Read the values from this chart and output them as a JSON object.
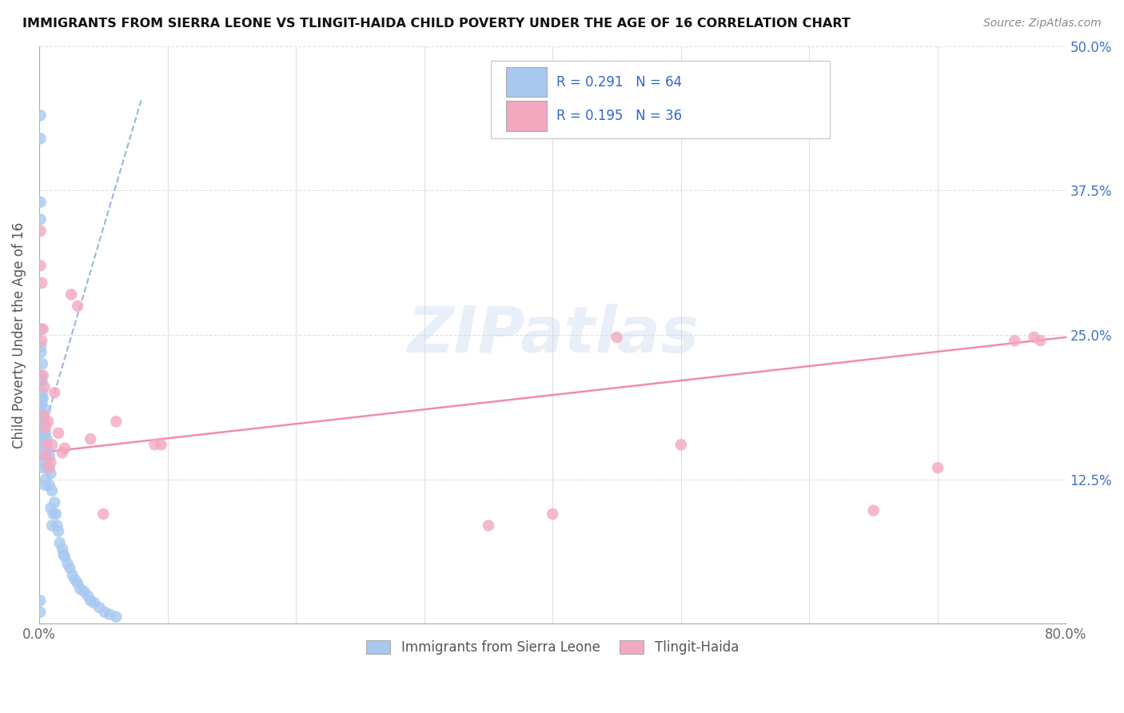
{
  "title": "IMMIGRANTS FROM SIERRA LEONE VS TLINGIT-HAIDA CHILD POVERTY UNDER THE AGE OF 16 CORRELATION CHART",
  "source": "Source: ZipAtlas.com",
  "ylabel": "Child Poverty Under the Age of 16",
  "legend_label1": "Immigrants from Sierra Leone",
  "legend_label2": "Tlingit-Haida",
  "R1": "0.291",
  "N1": "64",
  "R2": "0.195",
  "N2": "36",
  "color1": "#a8c8f0",
  "color2": "#f4a8c0",
  "trend1_color": "#88aadd",
  "trend2_color": "#f080a0",
  "xlim": [
    0.0,
    0.8
  ],
  "ylim": [
    0.0,
    0.5
  ],
  "xticks": [
    0.0,
    0.1,
    0.2,
    0.3,
    0.4,
    0.5,
    0.6,
    0.7,
    0.8
  ],
  "xticklabels": [
    "0.0%",
    "",
    "",
    "",
    "",
    "",
    "",
    "",
    "80.0%"
  ],
  "yticks": [
    0.0,
    0.125,
    0.25,
    0.375,
    0.5
  ],
  "yticklabels_right": [
    "",
    "12.5%",
    "25.0%",
    "37.5%",
    "50.0%"
  ],
  "watermark": "ZIPatlas",
  "blue_x": [
    0.001,
    0.0012,
    0.0012,
    0.0015,
    0.0015,
    0.0015,
    0.001,
    0.001,
    0.002,
    0.002,
    0.002,
    0.0022,
    0.0022,
    0.0025,
    0.0025,
    0.003,
    0.003,
    0.003,
    0.003,
    0.003,
    0.004,
    0.004,
    0.004,
    0.0045,
    0.005,
    0.005,
    0.005,
    0.005,
    0.006,
    0.006,
    0.007,
    0.008,
    0.008,
    0.009,
    0.009,
    0.01,
    0.01,
    0.011,
    0.012,
    0.013,
    0.014,
    0.015,
    0.016,
    0.018,
    0.019,
    0.02,
    0.022,
    0.024,
    0.026,
    0.028,
    0.03,
    0.032,
    0.035,
    0.038,
    0.04,
    0.043,
    0.047,
    0.051,
    0.055,
    0.06,
    0.001,
    0.001,
    0.0008,
    0.0008
  ],
  "blue_y": [
    0.19,
    0.24,
    0.215,
    0.255,
    0.235,
    0.21,
    0.35,
    0.365,
    0.195,
    0.175,
    0.155,
    0.21,
    0.19,
    0.225,
    0.2,
    0.195,
    0.18,
    0.165,
    0.15,
    0.135,
    0.175,
    0.16,
    0.14,
    0.12,
    0.185,
    0.165,
    0.145,
    0.125,
    0.16,
    0.135,
    0.15,
    0.145,
    0.12,
    0.13,
    0.1,
    0.115,
    0.085,
    0.095,
    0.105,
    0.095,
    0.085,
    0.08,
    0.07,
    0.065,
    0.06,
    0.058,
    0.052,
    0.048,
    0.042,
    0.038,
    0.035,
    0.03,
    0.028,
    0.024,
    0.02,
    0.018,
    0.014,
    0.01,
    0.008,
    0.006,
    0.44,
    0.42,
    0.02,
    0.01
  ],
  "pink_x": [
    0.001,
    0.001,
    0.002,
    0.002,
    0.003,
    0.003,
    0.004,
    0.004,
    0.005,
    0.005,
    0.006,
    0.007,
    0.008,
    0.009,
    0.01,
    0.012,
    0.015,
    0.018,
    0.02,
    0.025,
    0.03,
    0.04,
    0.05,
    0.06,
    0.09,
    0.095,
    0.35,
    0.4,
    0.45,
    0.5,
    0.6,
    0.65,
    0.7,
    0.76,
    0.775,
    0.78
  ],
  "pink_y": [
    0.31,
    0.34,
    0.295,
    0.245,
    0.255,
    0.215,
    0.205,
    0.18,
    0.17,
    0.145,
    0.155,
    0.175,
    0.135,
    0.14,
    0.155,
    0.2,
    0.165,
    0.148,
    0.152,
    0.285,
    0.275,
    0.16,
    0.095,
    0.175,
    0.155,
    0.155,
    0.085,
    0.095,
    0.248,
    0.155,
    0.425,
    0.098,
    0.135,
    0.245,
    0.248,
    0.245
  ],
  "blue_trend_x": [
    0.0,
    0.08
  ],
  "blue_trend_y": [
    0.155,
    0.455
  ],
  "pink_trend_x": [
    0.0,
    0.8
  ],
  "pink_trend_y": [
    0.148,
    0.248
  ]
}
